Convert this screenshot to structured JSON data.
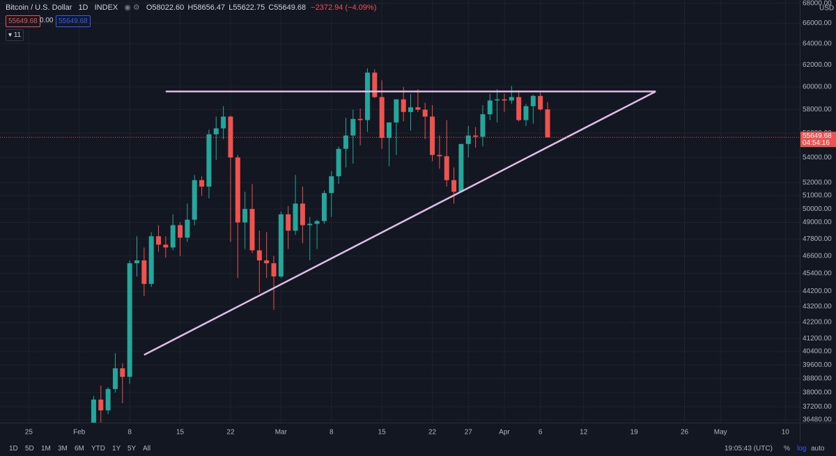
{
  "header": {
    "symbol": "Bitcoin / U.S. Dollar",
    "interval": "1D",
    "exchange": "INDEX",
    "open": "O58022.60",
    "high": "H58656.47",
    "low": "L55622.75",
    "close": "C55649.68",
    "change": "−2372.94 (−4.09%)",
    "sell": "55649.68",
    "spread": "0.00",
    "buy": "55649.68",
    "indicators": "11"
  },
  "toolbar": {
    "ranges": [
      "1D",
      "5D",
      "1M",
      "3M",
      "6M",
      "YTD",
      "1Y",
      "5Y",
      "All"
    ],
    "time": "19:05:43 (UTC)",
    "percent": "%",
    "log": "log",
    "auto": "auto"
  },
  "chart_data": {
    "type": "candlestick",
    "currency": "USD",
    "log_scale": true,
    "grid": true,
    "up_color": "#26a69a",
    "down_color": "#ef5350",
    "x": [
      "02-03",
      "02-04",
      "02-05",
      "02-06",
      "02-07",
      "02-08",
      "02-09",
      "02-10",
      "02-11",
      "02-12",
      "02-13",
      "02-14",
      "02-15",
      "02-16",
      "02-17",
      "02-18",
      "02-19",
      "02-20",
      "02-21",
      "02-22",
      "02-23",
      "02-24",
      "02-25",
      "02-26",
      "02-27",
      "02-28",
      "03-01",
      "03-02",
      "03-03",
      "03-04",
      "03-05",
      "03-06",
      "03-07",
      "03-08",
      "03-09",
      "03-10",
      "03-11",
      "03-12",
      "03-13",
      "03-14",
      "03-15",
      "03-16",
      "03-17",
      "03-18",
      "03-19",
      "03-20",
      "03-21",
      "03-22",
      "03-23",
      "03-24",
      "03-25",
      "03-26",
      "03-27",
      "03-28",
      "03-29",
      "03-30",
      "03-31",
      "04-01",
      "04-02",
      "04-03",
      "04-04",
      "04-05",
      "04-06",
      "04-07"
    ],
    "open": [
      36000,
      37600,
      37000,
      38200,
      39400,
      38900,
      46100,
      46300,
      44700,
      48000,
      47400,
      47200,
      48800,
      47900,
      49200,
      52200,
      51700,
      55900,
      56400,
      57400,
      54000,
      49000,
      50000,
      47000,
      46300,
      46100,
      45200,
      49600,
      48400,
      50400,
      48800,
      48900,
      49100,
      51200,
      52500,
      54700,
      55800,
      57200,
      57100,
      61300,
      59100,
      55600,
      56900,
      58900,
      57800,
      58200,
      58000,
      57400,
      54200,
      54100,
      52200,
      51300,
      55100,
      55800,
      55700,
      57600,
      58800,
      58900,
      58800,
      59100,
      57100,
      58300,
      59200,
      58022.6
    ],
    "high": [
      37800,
      38400,
      38300,
      40300,
      39700,
      46300,
      48000,
      47200,
      48300,
      48800,
      48000,
      49600,
      49000,
      50400,
      52600,
      52500,
      56300,
      57400,
      58300,
      57500,
      54200,
      51300,
      51900,
      48400,
      48300,
      46600,
      49800,
      50200,
      52600,
      51700,
      49400,
      49200,
      51400,
      52900,
      54900,
      57300,
      58000,
      58100,
      61700,
      61600,
      60600,
      56900,
      58900,
      60000,
      59400,
      59800,
      58600,
      58400,
      55800,
      57100,
      53200,
      55100,
      56600,
      56500,
      58400,
      59400,
      59800,
      59400,
      60100,
      59700,
      58500,
      59300,
      59500,
      58656.47
    ],
    "low": [
      35700,
      36200,
      36800,
      38000,
      37400,
      38500,
      45200,
      43900,
      44500,
      46900,
      46500,
      47000,
      46600,
      47600,
      48800,
      51000,
      50800,
      53800,
      55500,
      47600,
      45100,
      47100,
      46800,
      44100,
      45100,
      43000,
      45100,
      47100,
      48100,
      47500,
      46300,
      47100,
      48900,
      49400,
      51900,
      53200,
      53500,
      55000,
      56100,
      59000,
      54700,
      53300,
      54200,
      57000,
      56200,
      57800,
      55500,
      53700,
      53100,
      51700,
      50400,
      51300,
      54000,
      54800,
      54900,
      57100,
      56900,
      57800,
      58500,
      57000,
      56600,
      56800,
      57900,
      55622.75
    ],
    "close": [
      37600,
      37000,
      38200,
      39400,
      38900,
      46100,
      46300,
      44700,
      48000,
      47400,
      47200,
      48800,
      47900,
      49200,
      52200,
      51700,
      55900,
      56400,
      57400,
      54000,
      49000,
      50000,
      47000,
      46300,
      46100,
      45200,
      49600,
      48400,
      50400,
      48800,
      48900,
      49100,
      51200,
      52500,
      54700,
      55800,
      57200,
      57100,
      61300,
      59100,
      55600,
      56900,
      58900,
      57800,
      58200,
      58000,
      57400,
      54200,
      54100,
      52200,
      51300,
      55100,
      55800,
      55700,
      57600,
      58800,
      58900,
      58800,
      59100,
      57100,
      58300,
      59200,
      58022.62,
      55649.68
    ],
    "xlim": [
      "01-21",
      "05-12"
    ],
    "xticks": [
      {
        "value": "01-25",
        "label": "25"
      },
      {
        "value": "02-01",
        "label": "Feb"
      },
      {
        "value": "02-08",
        "label": "8"
      },
      {
        "value": "02-15",
        "label": "15"
      },
      {
        "value": "02-22",
        "label": "22"
      },
      {
        "value": "03-01",
        "label": "Mar"
      },
      {
        "value": "03-08",
        "label": "8"
      },
      {
        "value": "03-15",
        "label": "15"
      },
      {
        "value": "03-22",
        "label": "22"
      },
      {
        "value": "03-27",
        "label": "27"
      },
      {
        "value": "04-01",
        "label": "Apr"
      },
      {
        "value": "04-06",
        "label": "6"
      },
      {
        "value": "04-12",
        "label": "12"
      },
      {
        "value": "04-19",
        "label": "19"
      },
      {
        "value": "04-26",
        "label": "26"
      },
      {
        "value": "05-01",
        "label": "May"
      },
      {
        "value": "05-10",
        "label": "10"
      }
    ],
    "ylim": [
      36330,
      68330
    ],
    "yticks": [
      {
        "value": 68000,
        "label": "68000.00"
      },
      {
        "value": 66000,
        "label": "66000.00"
      },
      {
        "value": 64000,
        "label": "64000.00"
      },
      {
        "value": 62000,
        "label": "62000.00"
      },
      {
        "value": 60000,
        "label": "60000.00"
      },
      {
        "value": 58000,
        "label": "58000.00"
      },
      {
        "value": 56000,
        "label": "56000.00"
      },
      {
        "value": 54000,
        "label": "54000.00"
      },
      {
        "value": 52000,
        "label": "52000.00"
      },
      {
        "value": 51000,
        "label": "51000.00"
      },
      {
        "value": 50000,
        "label": "50000.00"
      },
      {
        "value": 49000,
        "label": "49000.00"
      },
      {
        "value": 47800,
        "label": "47800.00"
      },
      {
        "value": 46600,
        "label": "46600.00"
      },
      {
        "value": 45400,
        "label": "45400.00"
      },
      {
        "value": 44200,
        "label": "44200.00"
      },
      {
        "value": 43200,
        "label": "43200.00"
      },
      {
        "value": 42200,
        "label": "42200.00"
      },
      {
        "value": 41200,
        "label": "41200.00"
      },
      {
        "value": 40400,
        "label": "40400.00"
      },
      {
        "value": 39600,
        "label": "39600.00"
      },
      {
        "value": 38800,
        "label": "38800.00"
      },
      {
        "value": 38000,
        "label": "38000.00"
      },
      {
        "value": 37200,
        "label": "37200.00"
      },
      {
        "value": 36480,
        "label": "36480.00"
      }
    ],
    "trend_color": "#e1bee7",
    "trend_lines": [
      {
        "x": [
          "02-13",
          "04-22"
        ],
        "y": [
          59600,
          59600
        ]
      },
      {
        "x": [
          "02-10",
          "04-22"
        ],
        "y": [
          40200,
          59600
        ]
      }
    ],
    "last_price": {
      "value": 55649.68,
      "label": "55649.68"
    },
    "countdown": "04:54:16"
  }
}
